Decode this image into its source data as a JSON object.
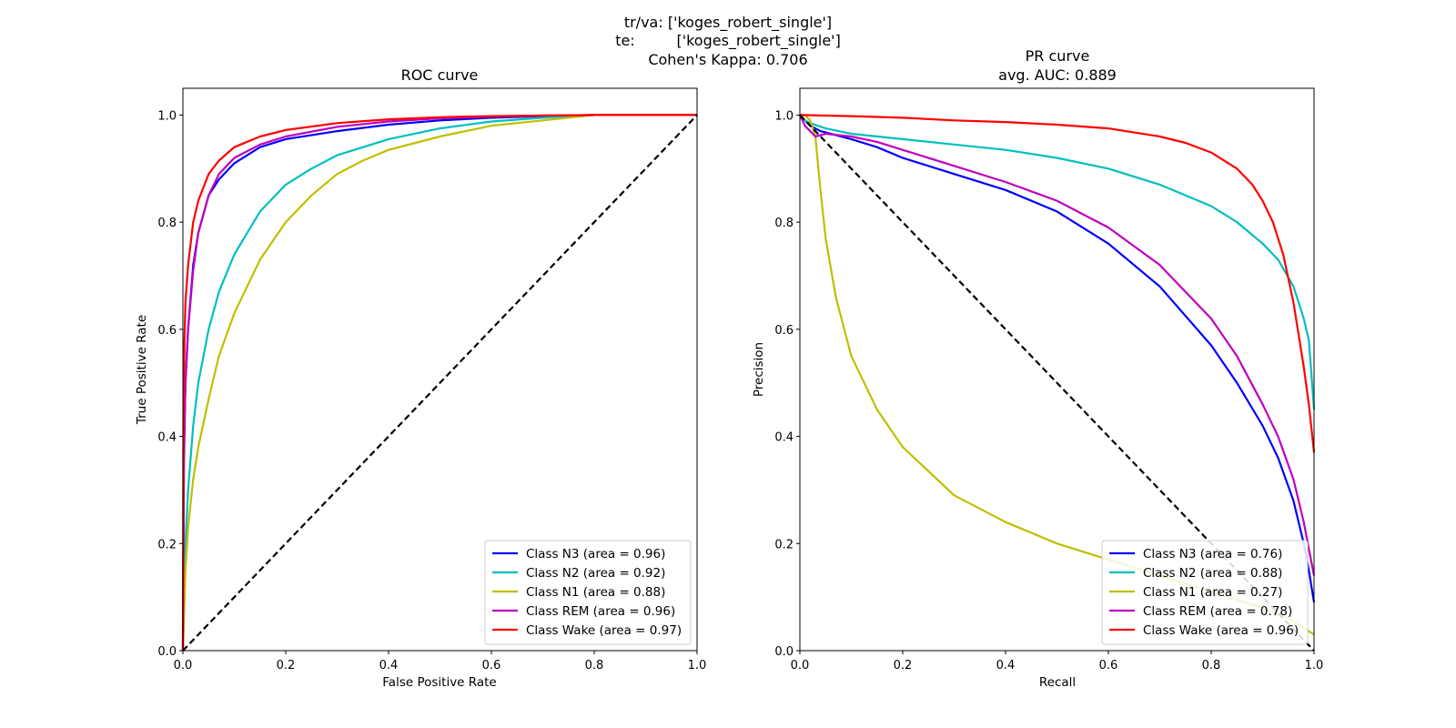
{
  "figure": {
    "suptitle": [
      "tr/va: ['koges_robert_single']",
      "te:         ['koges_robert_single']",
      "Cohen's Kappa: 0.706"
    ]
  },
  "chart_data": [
    {
      "type": "line",
      "title": "ROC curve",
      "xlabel": "False Positive Rate",
      "ylabel": "True Positive Rate",
      "xlim": [
        0.0,
        1.0
      ],
      "ylim": [
        0.0,
        1.05
      ],
      "xticks": [
        "0.0",
        "0.2",
        "0.4",
        "0.6",
        "0.8",
        "1.0"
      ],
      "yticks": [
        "0.0",
        "0.2",
        "0.4",
        "0.6",
        "0.8",
        "1.0"
      ],
      "grid": false,
      "legend_position": "lower-right",
      "reference_line": {
        "x": [
          0,
          1
        ],
        "y": [
          0,
          1
        ],
        "style": "dashed",
        "color": "#000000"
      },
      "series": [
        {
          "name": "Class N3 (area = 0.96)",
          "color": "#0000ff",
          "x": [
            0,
            0.002,
            0.005,
            0.01,
            0.02,
            0.03,
            0.05,
            0.07,
            0.1,
            0.15,
            0.2,
            0.3,
            0.4,
            0.5,
            0.6,
            0.7,
            0.8,
            1.0
          ],
          "y": [
            0,
            0.35,
            0.5,
            0.6,
            0.72,
            0.78,
            0.85,
            0.88,
            0.91,
            0.94,
            0.955,
            0.97,
            0.982,
            0.99,
            0.995,
            0.998,
            1.0,
            1.0
          ]
        },
        {
          "name": "Class N2 (area = 0.92)",
          "color": "#00bfbf",
          "x": [
            0,
            0.005,
            0.01,
            0.02,
            0.03,
            0.05,
            0.07,
            0.1,
            0.15,
            0.2,
            0.25,
            0.3,
            0.4,
            0.5,
            0.6,
            0.7,
            0.8,
            1.0
          ],
          "y": [
            0,
            0.2,
            0.3,
            0.42,
            0.5,
            0.6,
            0.67,
            0.74,
            0.82,
            0.87,
            0.9,
            0.925,
            0.955,
            0.975,
            0.988,
            0.995,
            1.0,
            1.0
          ]
        },
        {
          "name": "Class N1 (area = 0.88)",
          "color": "#bfbf00",
          "x": [
            0,
            0.005,
            0.01,
            0.02,
            0.03,
            0.05,
            0.07,
            0.1,
            0.15,
            0.2,
            0.25,
            0.3,
            0.35,
            0.4,
            0.5,
            0.6,
            0.7,
            0.8,
            1.0
          ],
          "y": [
            0,
            0.15,
            0.23,
            0.32,
            0.38,
            0.47,
            0.55,
            0.63,
            0.73,
            0.8,
            0.85,
            0.89,
            0.915,
            0.935,
            0.96,
            0.98,
            0.99,
            1.0,
            1.0
          ]
        },
        {
          "name": "Class REM (area = 0.96)",
          "color": "#bf00bf",
          "x": [
            0,
            0.002,
            0.005,
            0.01,
            0.02,
            0.03,
            0.05,
            0.07,
            0.1,
            0.15,
            0.2,
            0.3,
            0.4,
            0.5,
            0.6,
            0.7,
            0.8,
            1.0
          ],
          "y": [
            0,
            0.38,
            0.5,
            0.6,
            0.71,
            0.78,
            0.85,
            0.89,
            0.92,
            0.945,
            0.96,
            0.978,
            0.988,
            0.994,
            0.997,
            0.999,
            1.0,
            1.0
          ]
        },
        {
          "name": "Class Wake (area = 0.97)",
          "color": "#ff0000",
          "x": [
            0,
            0.001,
            0.003,
            0.005,
            0.01,
            0.02,
            0.03,
            0.05,
            0.07,
            0.1,
            0.15,
            0.2,
            0.3,
            0.4,
            0.5,
            0.6,
            0.7,
            0.8,
            1.0
          ],
          "y": [
            0,
            0.45,
            0.58,
            0.65,
            0.72,
            0.8,
            0.84,
            0.89,
            0.915,
            0.94,
            0.96,
            0.972,
            0.985,
            0.992,
            0.996,
            0.998,
            0.999,
            1.0,
            1.0
          ]
        }
      ]
    },
    {
      "type": "line",
      "title": "PR curve",
      "subtitle": "avg. AUC: 0.889",
      "xlabel": "Recall",
      "ylabel": "Precision",
      "xlim": [
        0.0,
        1.0
      ],
      "ylim": [
        0.0,
        1.05
      ],
      "xticks": [
        "0.0",
        "0.2",
        "0.4",
        "0.6",
        "0.8",
        "1.0"
      ],
      "yticks": [
        "0.0",
        "0.2",
        "0.4",
        "0.6",
        "0.8",
        "1.0"
      ],
      "grid": false,
      "legend_position": "lower-right",
      "reference_line": {
        "x": [
          0,
          1
        ],
        "y": [
          1,
          0
        ],
        "style": "dashed",
        "color": "#000000"
      },
      "series": [
        {
          "name": "Class N3 (area = 0.76)",
          "color": "#0000ff",
          "x": [
            0,
            0.01,
            0.02,
            0.04,
            0.06,
            0.1,
            0.15,
            0.2,
            0.3,
            0.4,
            0.5,
            0.6,
            0.7,
            0.8,
            0.85,
            0.9,
            0.93,
            0.96,
            0.98,
            0.99,
            1.0
          ],
          "y": [
            1.0,
            0.99,
            0.98,
            0.97,
            0.965,
            0.955,
            0.94,
            0.92,
            0.89,
            0.86,
            0.82,
            0.76,
            0.68,
            0.57,
            0.5,
            0.42,
            0.36,
            0.28,
            0.2,
            0.15,
            0.09
          ]
        },
        {
          "name": "Class N2 (area = 0.88)",
          "color": "#00bfbf",
          "x": [
            0,
            0.01,
            0.02,
            0.05,
            0.1,
            0.2,
            0.3,
            0.4,
            0.5,
            0.6,
            0.7,
            0.8,
            0.85,
            0.9,
            0.93,
            0.96,
            0.98,
            0.99,
            1.0
          ],
          "y": [
            1.0,
            0.99,
            0.985,
            0.975,
            0.965,
            0.955,
            0.945,
            0.935,
            0.92,
            0.9,
            0.87,
            0.83,
            0.8,
            0.76,
            0.73,
            0.68,
            0.62,
            0.58,
            0.45
          ]
        },
        {
          "name": "Class N1 (area = 0.27)",
          "color": "#bfbf00",
          "x": [
            0,
            0.01,
            0.02,
            0.03,
            0.04,
            0.05,
            0.07,
            0.1,
            0.15,
            0.2,
            0.3,
            0.4,
            0.5,
            0.6,
            0.7,
            0.8,
            0.9,
            0.95,
            1.0
          ],
          "y": [
            1.0,
            1.0,
            0.99,
            0.96,
            0.86,
            0.77,
            0.66,
            0.55,
            0.45,
            0.38,
            0.29,
            0.24,
            0.2,
            0.17,
            0.14,
            0.11,
            0.08,
            0.06,
            0.03
          ]
        },
        {
          "name": "Class REM (area = 0.78)",
          "color": "#bf00bf",
          "x": [
            0,
            0.01,
            0.02,
            0.03,
            0.05,
            0.1,
            0.15,
            0.2,
            0.3,
            0.4,
            0.5,
            0.6,
            0.7,
            0.8,
            0.85,
            0.9,
            0.93,
            0.96,
            0.98,
            0.99,
            1.0
          ],
          "y": [
            1.0,
            0.98,
            0.97,
            0.96,
            0.965,
            0.96,
            0.95,
            0.935,
            0.905,
            0.875,
            0.84,
            0.79,
            0.72,
            0.62,
            0.55,
            0.46,
            0.4,
            0.32,
            0.24,
            0.19,
            0.14
          ]
        },
        {
          "name": "Class Wake (area = 0.96)",
          "color": "#ff0000",
          "x": [
            0,
            0.1,
            0.2,
            0.3,
            0.4,
            0.5,
            0.6,
            0.7,
            0.75,
            0.8,
            0.85,
            0.88,
            0.9,
            0.92,
            0.94,
            0.96,
            0.98,
            0.99,
            1.0
          ],
          "y": [
            1.0,
            0.998,
            0.995,
            0.99,
            0.987,
            0.982,
            0.975,
            0.96,
            0.948,
            0.93,
            0.9,
            0.87,
            0.84,
            0.8,
            0.74,
            0.65,
            0.53,
            0.46,
            0.37
          ]
        }
      ]
    }
  ]
}
